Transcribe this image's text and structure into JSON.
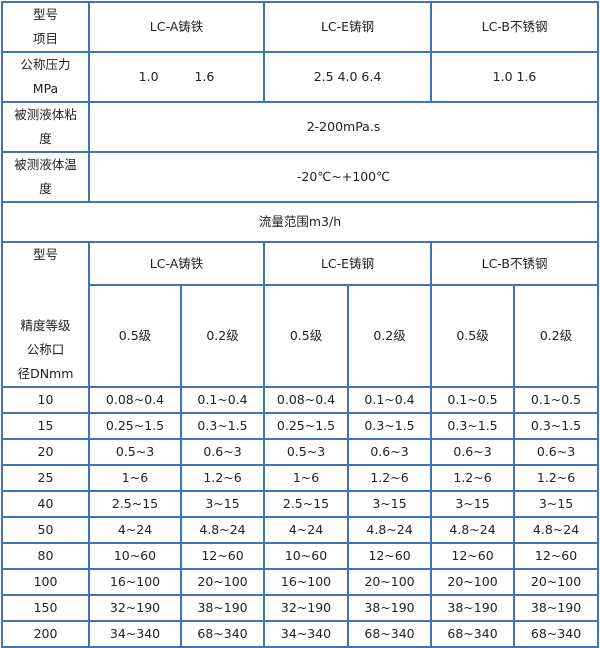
{
  "spec_table": {
    "header": {
      "col0_line1": "型号",
      "col0_line2": "项目",
      "models": [
        "LC-A铸铁",
        "LC-E铸钢",
        "LC-B不锈钢"
      ]
    },
    "pressure": {
      "label_line1": "公称压力",
      "label_line2": "MPa",
      "values": [
        "1.0  1.6",
        "2.5 4.0 6.4",
        "1.0 1.6"
      ]
    },
    "viscosity": {
      "label_line1": "被测液体粘",
      "label_line2": "度",
      "value": "2-200mPa.s"
    },
    "temperature": {
      "label_line1": "被测液体温",
      "label_line2": "度",
      "value": "-20℃~+100℃"
    }
  },
  "flow_table": {
    "title": "流量范围m3/h",
    "corner": {
      "top": "型号",
      "bottom_line1": "精度等级",
      "bottom_line2": "公称口",
      "bottom_line3": "径DNmm"
    },
    "models": [
      "LC-A铸铁",
      "LC-E铸钢",
      "LC-B不锈钢"
    ],
    "grades": [
      "0.5级",
      "0.2级",
      "0.5级",
      "0.2级",
      "0.5级",
      "0.2级"
    ],
    "rows": [
      {
        "dn": "10",
        "values": [
          "0.08~0.4",
          "0.1~0.4",
          "0.08~0.4",
          "0.1~0.4",
          "0.1~0.5",
          "0.1~0.5"
        ]
      },
      {
        "dn": "15",
        "values": [
          "0.25~1.5",
          "0.3~1.5",
          "0.25~1.5",
          "0.3~1.5",
          "0.3~1.5",
          "0.3~1.5"
        ]
      },
      {
        "dn": "20",
        "values": [
          "0.5~3",
          "0.6~3",
          "0.5~3",
          "0.6~3",
          "0.6~3",
          "0.6~3"
        ]
      },
      {
        "dn": "25",
        "values": [
          "1~6",
          "1.2~6",
          "1~6",
          "1.2~6",
          "1.2~6",
          "1.2~6"
        ]
      },
      {
        "dn": "40",
        "values": [
          "2.5~15",
          "3~15",
          "2.5~15",
          "3~15",
          "3~15",
          "3~15"
        ]
      },
      {
        "dn": "50",
        "values": [
          "4~24",
          "4.8~24",
          "4~24",
          "4.8~24",
          "4.8~24",
          "4.8~24"
        ]
      },
      {
        "dn": "80",
        "values": [
          "10~60",
          "12~60",
          "10~60",
          "12~60",
          "12~60",
          "12~60"
        ]
      },
      {
        "dn": "100",
        "values": [
          "16~100",
          "20~100",
          "16~100",
          "20~100",
          "20~100",
          "20~100"
        ]
      },
      {
        "dn": "150",
        "values": [
          "32~190",
          "38~190",
          "32~190",
          "38~190",
          "38~190",
          "38~190"
        ]
      },
      {
        "dn": "200",
        "values": [
          "34~340",
          "68~340",
          "34~340",
          "68~340",
          "68~340",
          "68~340"
        ]
      }
    ]
  },
  "colors": {
    "border": "#3f72b8",
    "text": "#222222"
  }
}
